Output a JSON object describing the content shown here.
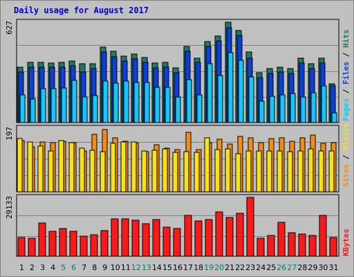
{
  "chart_data": {
    "type": "bar",
    "title": "Daily usage for August 2017",
    "categories": [
      "1",
      "2",
      "3",
      "4",
      "5",
      "6",
      "7",
      "8",
      "9",
      "10",
      "11",
      "12",
      "13",
      "14",
      "15",
      "16",
      "17",
      "18",
      "19",
      "20",
      "21",
      "22",
      "23",
      "24",
      "25",
      "26",
      "27",
      "28",
      "29",
      "30",
      "31"
    ],
    "weekend_days": [
      "5",
      "6",
      "12",
      "13",
      "19",
      "20",
      "26",
      "27"
    ],
    "panels": [
      {
        "name": "hits-files-pages",
        "ymax_label": "627",
        "ylim": [
          0,
          627
        ],
        "side_label": [
          "Pages",
          "Files",
          "Hits"
        ],
        "series": [
          {
            "name": "Hits",
            "color": "#1f7a5e",
            "values": [
              346,
              376,
              376,
              372,
              376,
              386,
              366,
              369,
              471,
              446,
              416,
              426,
              408,
              372,
              378,
              342,
              476,
              404,
              504,
              539,
              627,
              574,
              439,
              312,
              338,
              346,
              336,
              403,
              368,
              403,
              244
            ]
          },
          {
            "name": "Files",
            "color": "#0b3fd8",
            "values": [
              316,
              346,
              346,
              346,
              346,
              356,
              316,
              336,
              441,
              412,
              386,
              398,
              378,
              342,
              346,
              312,
              446,
              376,
              474,
              509,
              593,
              544,
              404,
              282,
              306,
              316,
              306,
              374,
              338,
              374,
              228
            ]
          },
          {
            "name": "Pages",
            "color": "#16c6f6",
            "values": [
              172,
              148,
              210,
              212,
              218,
              262,
              158,
              170,
              258,
              248,
              258,
              250,
              252,
              220,
              220,
              162,
              270,
              174,
              366,
              296,
              438,
              388,
              284,
              136,
              166,
              172,
              182,
              160,
              188,
              228,
              62
            ]
          }
        ]
      },
      {
        "name": "sites-visits",
        "ymax_label": "197",
        "ylim": [
          0,
          197
        ],
        "side_label": [
          "Sites",
          "Visits"
        ],
        "series": [
          {
            "name": "Sites",
            "color": "#f68c16",
            "values": [
              158,
              140,
              155,
              153,
              156,
              152,
              126,
              177,
              193,
              167,
              156,
              152,
              125,
              146,
              134,
              131,
              184,
              131,
              151,
              162,
              148,
              171,
              168,
              153,
              165,
              167,
              156,
              166,
              176,
              150,
              153
            ]
          },
          {
            "name": "Visits",
            "color": "#f6e11a",
            "values": [
              165,
              154,
              142,
              127,
              158,
              151,
              134,
              128,
              125,
              150,
              154,
              155,
              127,
              128,
              133,
              121,
              125,
              122,
              167,
              130,
              133,
              118,
              126,
              126,
              127,
              126,
              124,
              126,
              133,
              126,
              126
            ]
          }
        ]
      },
      {
        "name": "kbytes",
        "ymax_label": "29133",
        "ylim": [
          0,
          29133
        ],
        "side_label": [
          "KBytes"
        ],
        "series": [
          {
            "name": "KBytes",
            "color": "#f61a1a",
            "values": [
              9200,
              8800,
              16600,
              12300,
              13800,
              12400,
              10000,
              10700,
              12700,
              18500,
              18400,
              17800,
              16200,
              18200,
              14400,
              13800,
              20200,
              17400,
              18100,
              22000,
              19100,
              21300,
              29133,
              9000,
              10200,
              16800,
              11500,
              10900,
              10200,
              20100,
              9100
            ]
          }
        ]
      }
    ]
  }
}
